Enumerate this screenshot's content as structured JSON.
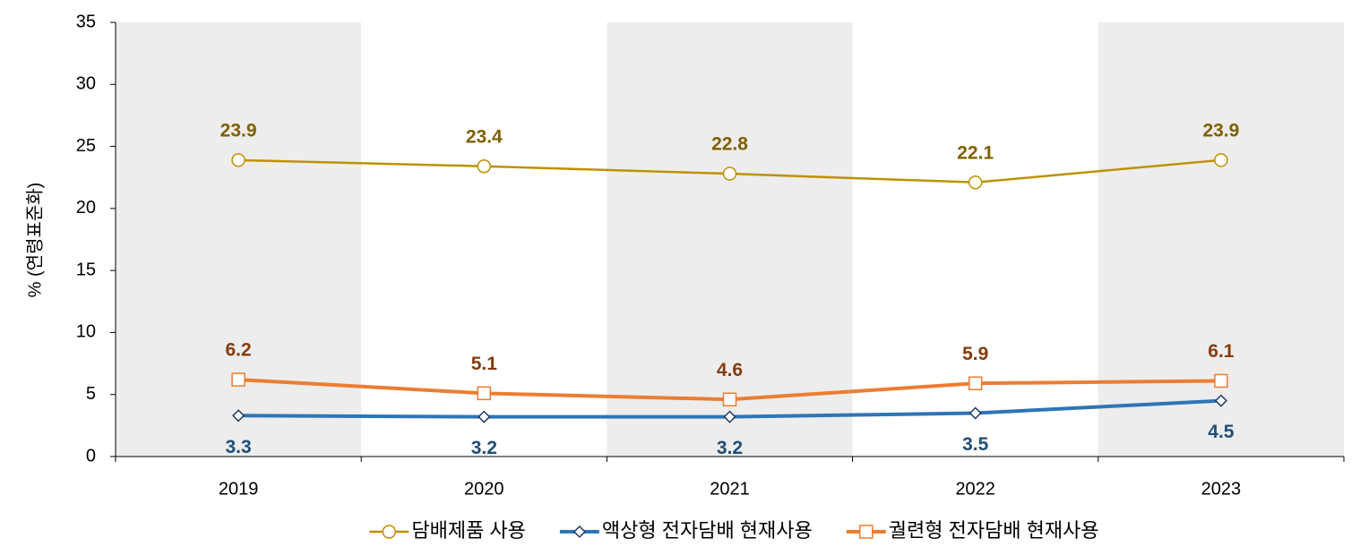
{
  "chart_data": {
    "type": "line",
    "y_label": "% (연령표준화)",
    "categories": [
      "2019",
      "2020",
      "2021",
      "2022",
      "2023"
    ],
    "ylim": [
      0,
      35
    ],
    "yticks": [
      0,
      5,
      10,
      15,
      20,
      25,
      30,
      35
    ],
    "alternate_shading": true,
    "shading_color": "#ededed",
    "legend": "bottom",
    "series": [
      {
        "name": "담배제품 사용",
        "color": "#bf9000",
        "label_color": "#7f6000",
        "marker": "circle",
        "label_position": "above",
        "line_width": 2.5,
        "values": [
          23.9,
          23.4,
          22.8,
          22.1,
          23.9
        ]
      },
      {
        "name": "액상형 전자담배 현재사용",
        "color": "#2e75b6",
        "label_color": "#1f4e79",
        "marker": "diamond",
        "label_position": "below",
        "line_width": 4,
        "values": [
          3.3,
          3.2,
          3.2,
          3.5,
          4.5
        ]
      },
      {
        "name": "궐련형 전자담배 현재사용",
        "color": "#ed7d31",
        "label_color": "#843c0c",
        "marker": "square",
        "label_position": "above",
        "line_width": 4,
        "values": [
          6.2,
          5.1,
          4.6,
          5.9,
          6.1
        ]
      }
    ]
  }
}
